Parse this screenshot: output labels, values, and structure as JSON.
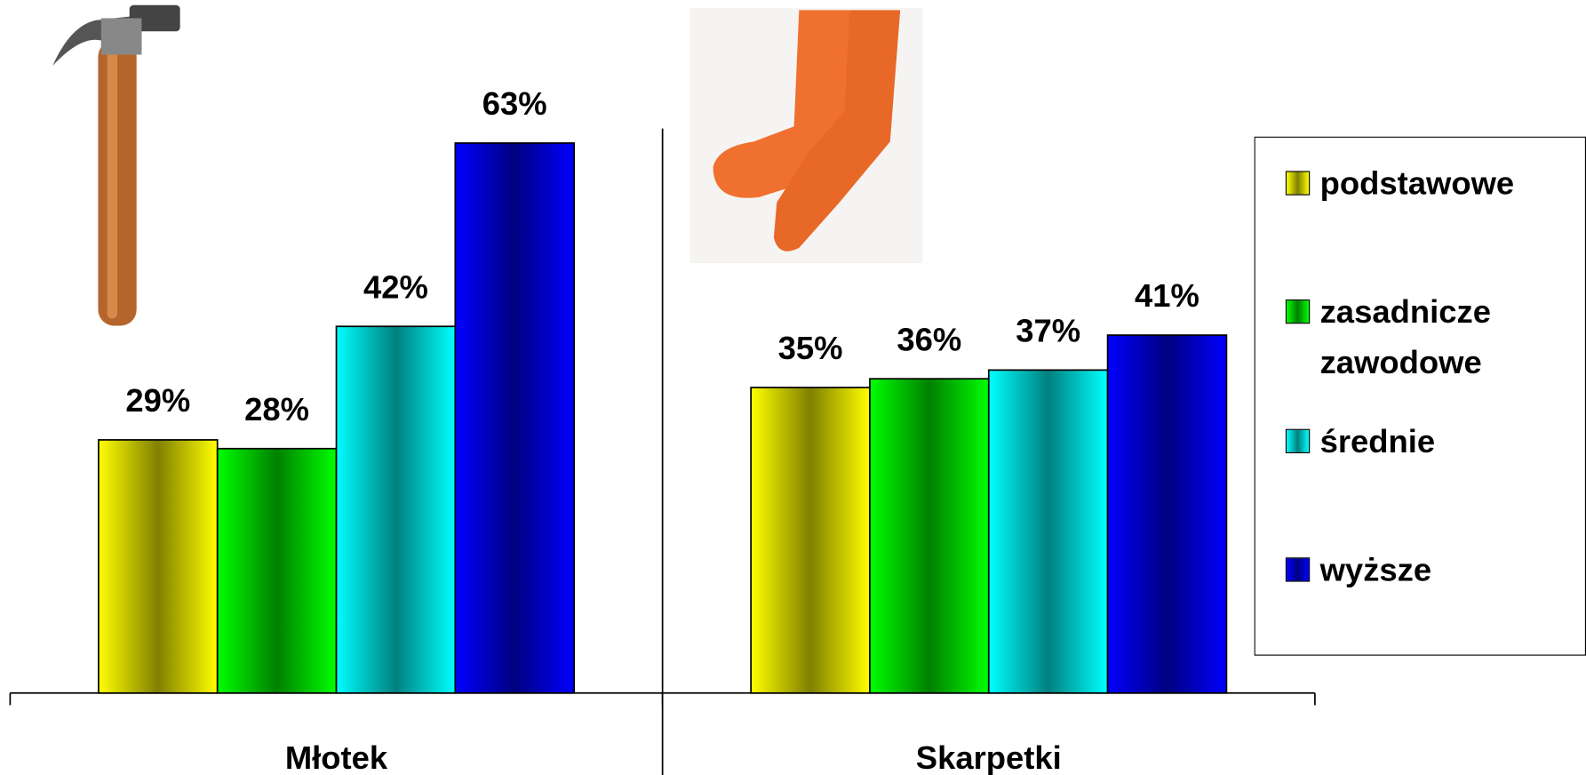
{
  "chart_data": {
    "type": "bar",
    "categories": [
      "Młotek",
      "Skarpetki"
    ],
    "series": [
      {
        "name": "podstawowe",
        "color": "#ffff00",
        "values": [
          29,
          35
        ],
        "value_labels": [
          "29%",
          "35%"
        ]
      },
      {
        "name": "zasadnicze zawodowe",
        "color": "#00ff00",
        "values": [
          28,
          36
        ],
        "value_labels": [
          "28%",
          "36%"
        ]
      },
      {
        "name": "średnie",
        "color": "#00ffff",
        "values": [
          42,
          37
        ],
        "value_labels": [
          "42%",
          "37%"
        ]
      },
      {
        "name": "wyższe",
        "color": "#0000ff",
        "values": [
          63,
          41
        ],
        "value_labels": [
          "63%",
          "41%"
        ]
      }
    ],
    "ylim": [
      0,
      70
    ],
    "legend": "right"
  }
}
